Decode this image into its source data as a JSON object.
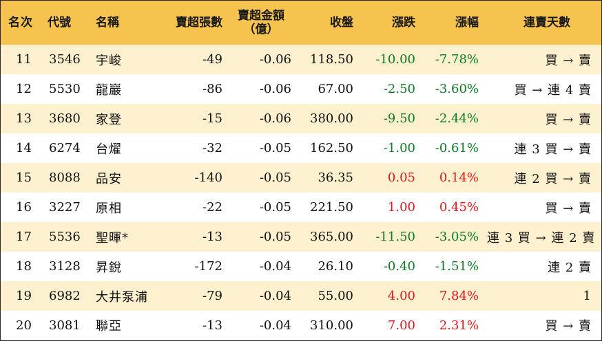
{
  "header": {
    "rank": "名次",
    "code": "代號",
    "name": "名稱",
    "net_sell_lots": "賣超張數",
    "net_sell_amount_line1": "賣超金額",
    "net_sell_amount_line2": "（億）",
    "close": "收盤",
    "change": "漲跌",
    "change_pct": "漲幅",
    "streak": "連賣天數"
  },
  "rows": [
    {
      "rank": "11",
      "code": "3546",
      "name": "宇峻",
      "lots": "-49",
      "amount": "-0.06",
      "close": "118.50",
      "change": "-10.00",
      "change_pct": "-7.78%",
      "direction": "down",
      "streak": "買 → 賣"
    },
    {
      "rank": "12",
      "code": "5530",
      "name": "龍巖",
      "lots": "-86",
      "amount": "-0.06",
      "close": "67.00",
      "change": "-2.50",
      "change_pct": "-3.60%",
      "direction": "down",
      "streak": "買 → 連 4 賣"
    },
    {
      "rank": "13",
      "code": "3680",
      "name": "家登",
      "lots": "-15",
      "amount": "-0.06",
      "close": "380.00",
      "change": "-9.50",
      "change_pct": "-2.44%",
      "direction": "down",
      "streak": "買 → 賣"
    },
    {
      "rank": "14",
      "code": "6274",
      "name": "台燿",
      "lots": "-32",
      "amount": "-0.05",
      "close": "162.50",
      "change": "-1.00",
      "change_pct": "-0.61%",
      "direction": "down",
      "streak": "連 3 買 → 賣"
    },
    {
      "rank": "15",
      "code": "8088",
      "name": "品安",
      "lots": "-140",
      "amount": "-0.05",
      "close": "36.35",
      "change": "0.05",
      "change_pct": "0.14%",
      "direction": "up",
      "streak": "連 2 買 → 賣"
    },
    {
      "rank": "16",
      "code": "3227",
      "name": "原相",
      "lots": "-22",
      "amount": "-0.05",
      "close": "221.50",
      "change": "1.00",
      "change_pct": "0.45%",
      "direction": "up",
      "streak": "買 → 賣"
    },
    {
      "rank": "17",
      "code": "5536",
      "name": "聖暉*",
      "lots": "-13",
      "amount": "-0.05",
      "close": "365.00",
      "change": "-11.50",
      "change_pct": "-3.05%",
      "direction": "down",
      "streak": "連 3 買 → 連 2 賣"
    },
    {
      "rank": "18",
      "code": "3128",
      "name": "昇銳",
      "lots": "-172",
      "amount": "-0.04",
      "close": "26.10",
      "change": "-0.40",
      "change_pct": "-1.51%",
      "direction": "down",
      "streak": "連 2 賣"
    },
    {
      "rank": "19",
      "code": "6982",
      "name": "大井泵浦",
      "lots": "-79",
      "amount": "-0.04",
      "close": "55.00",
      "change": "4.00",
      "change_pct": "7.84%",
      "direction": "up",
      "streak": "1"
    },
    {
      "rank": "20",
      "code": "3081",
      "name": "聯亞",
      "lots": "-13",
      "amount": "-0.04",
      "close": "310.00",
      "change": "7.00",
      "change_pct": "2.31%",
      "direction": "up",
      "streak": "買 → 賣"
    }
  ],
  "colors": {
    "header_bg": "#f6c34e",
    "alt_row_bg": "#fdf0cf",
    "up": "#e8141b",
    "down": "#0b7d23"
  }
}
